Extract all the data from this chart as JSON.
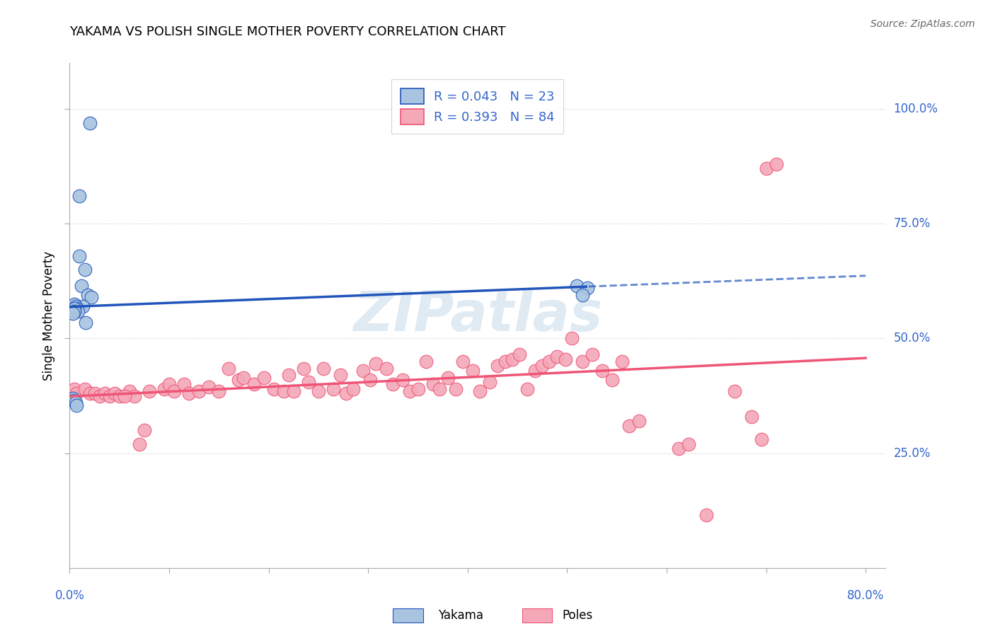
{
  "title": "YAKAMA VS POLISH SINGLE MOTHER POVERTY CORRELATION CHART",
  "source": "Source: ZipAtlas.com",
  "ylabel": "Single Mother Poverty",
  "ytick_labels": [
    "100.0%",
    "75.0%",
    "50.0%",
    "25.0%"
  ],
  "ytick_values": [
    1.0,
    0.75,
    0.5,
    0.25
  ],
  "xlim": [
    0.0,
    0.8
  ],
  "ylim": [
    0.0,
    1.1
  ],
  "legend_r1": "R = 0.043",
  "legend_n1": "N = 23",
  "legend_r2": "R = 0.393",
  "legend_n2": "N = 84",
  "yakama_color": "#A8C4E0",
  "poles_color": "#F4A8B8",
  "trendline_yakama_color": "#2255BB",
  "trendline_poles_color": "#EE5577",
  "watermark": "ZIPatlas",
  "yakama_x": [
    0.02,
    0.01,
    0.01,
    0.015,
    0.012,
    0.018,
    0.022,
    0.013,
    0.016,
    0.005,
    0.006,
    0.007,
    0.008,
    0.005,
    0.005,
    0.003,
    0.51,
    0.52,
    0.515,
    0.003,
    0.004,
    0.006,
    0.007
  ],
  "yakama_y": [
    0.97,
    0.81,
    0.68,
    0.65,
    0.615,
    0.595,
    0.59,
    0.57,
    0.535,
    0.575,
    0.57,
    0.565,
    0.56,
    0.565,
    0.56,
    0.555,
    0.615,
    0.61,
    0.595,
    0.37,
    0.365,
    0.36,
    0.355
  ],
  "poles_x": [
    0.7,
    0.71,
    0.005,
    0.007,
    0.06,
    0.065,
    0.08,
    0.095,
    0.1,
    0.105,
    0.115,
    0.12,
    0.13,
    0.14,
    0.15,
    0.16,
    0.17,
    0.175,
    0.185,
    0.195,
    0.205,
    0.215,
    0.22,
    0.225,
    0.235,
    0.24,
    0.25,
    0.255,
    0.265,
    0.272,
    0.278,
    0.285,
    0.295,
    0.302,
    0.308,
    0.318,
    0.325,
    0.335,
    0.342,
    0.35,
    0.358,
    0.365,
    0.372,
    0.38,
    0.388,
    0.395,
    0.405,
    0.412,
    0.422,
    0.43,
    0.438,
    0.445,
    0.452,
    0.46,
    0.468,
    0.475,
    0.482,
    0.49,
    0.498,
    0.505,
    0.515,
    0.525,
    0.535,
    0.545,
    0.555,
    0.562,
    0.572,
    0.612,
    0.622,
    0.64,
    0.668,
    0.685,
    0.695,
    0.015,
    0.02,
    0.025,
    0.03,
    0.035,
    0.04,
    0.045,
    0.05,
    0.055,
    0.07,
    0.075
  ],
  "poles_y": [
    0.87,
    0.88,
    0.39,
    0.38,
    0.385,
    0.375,
    0.385,
    0.39,
    0.4,
    0.385,
    0.4,
    0.38,
    0.385,
    0.395,
    0.385,
    0.435,
    0.41,
    0.415,
    0.4,
    0.415,
    0.39,
    0.385,
    0.42,
    0.385,
    0.435,
    0.405,
    0.385,
    0.435,
    0.39,
    0.42,
    0.38,
    0.39,
    0.43,
    0.41,
    0.445,
    0.435,
    0.4,
    0.41,
    0.385,
    0.39,
    0.45,
    0.4,
    0.39,
    0.415,
    0.39,
    0.45,
    0.43,
    0.385,
    0.405,
    0.44,
    0.45,
    0.455,
    0.465,
    0.39,
    0.43,
    0.44,
    0.45,
    0.46,
    0.455,
    0.5,
    0.45,
    0.465,
    0.43,
    0.41,
    0.45,
    0.31,
    0.32,
    0.26,
    0.27,
    0.115,
    0.385,
    0.33,
    0.28,
    0.39,
    0.38,
    0.38,
    0.375,
    0.38,
    0.375,
    0.38,
    0.375,
    0.375,
    0.27,
    0.3
  ]
}
